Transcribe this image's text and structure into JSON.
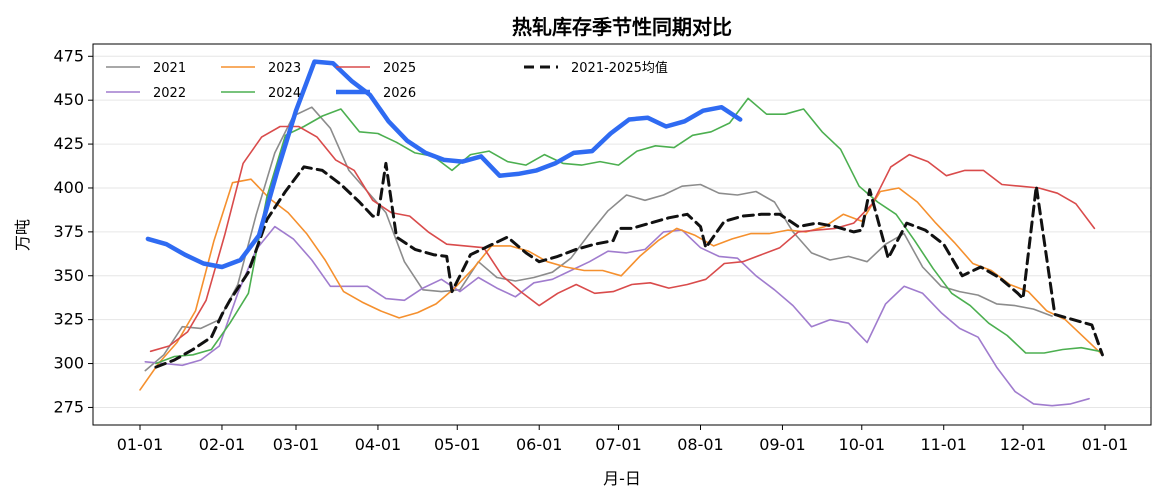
{
  "chart_data": {
    "type": "line",
    "title": "热轧库存季节性同期对比",
    "xlabel": "月-日",
    "ylabel": "万吨",
    "ylim": [
      265,
      482
    ],
    "yticks": [
      275,
      300,
      325,
      350,
      375,
      400,
      425,
      450,
      475
    ],
    "x_tick_labels": [
      "01-01",
      "02-01",
      "03-01",
      "04-01",
      "05-01",
      "06-01",
      "07-01",
      "08-01",
      "09-01",
      "10-01",
      "11-01",
      "12-01",
      "01-01"
    ],
    "x_tick_days": [
      0,
      31,
      59,
      90,
      120,
      151,
      181,
      212,
      243,
      273,
      304,
      334,
      365
    ],
    "grid": "horizontal",
    "legend_position": "top-left",
    "series": [
      {
        "name": "2021",
        "color": "#8c8c8c",
        "width": 1.6,
        "dash": "",
        "x": [
          2,
          9,
          16,
          23,
          30,
          37,
          44,
          51,
          58,
          65,
          72,
          79,
          86,
          93,
          100,
          107,
          114,
          121,
          128,
          135,
          142,
          149,
          156,
          163,
          170,
          177,
          184,
          191,
          198,
          205,
          212,
          219,
          226,
          233,
          240,
          247,
          254,
          261,
          268,
          275,
          282,
          289,
          296,
          303,
          310,
          317,
          324,
          331,
          338,
          345
        ],
        "y": [
          296,
          305,
          321,
          320,
          325,
          345,
          385,
          420,
          441,
          446,
          434,
          410,
          398,
          386,
          358,
          342,
          341,
          342,
          358,
          349,
          347,
          349,
          352,
          360,
          374,
          387,
          396,
          393,
          396,
          401,
          402,
          397,
          396,
          398,
          392,
          375,
          363,
          359,
          361,
          358,
          368,
          374,
          355,
          344,
          341,
          339,
          334,
          333,
          331,
          327
        ]
      },
      {
        "name": "2022",
        "color": "#a07cce",
        "width": 1.6,
        "dash": "",
        "x": [
          2,
          9,
          16,
          23,
          30,
          37,
          44,
          51,
          58,
          65,
          72,
          79,
          86,
          93,
          100,
          107,
          114,
          121,
          128,
          135,
          142,
          149,
          156,
          163,
          170,
          177,
          184,
          191,
          198,
          205,
          212,
          219,
          226,
          233,
          240,
          247,
          254,
          261,
          268,
          275,
          282,
          289,
          296,
          303,
          310,
          317,
          324,
          331,
          338,
          345,
          352,
          359
        ],
        "y": [
          301,
          300,
          299,
          302,
          310,
          340,
          365,
          378,
          371,
          359,
          344,
          344,
          344,
          337,
          336,
          343,
          348,
          341,
          349,
          343,
          338,
          346,
          348,
          353,
          358,
          364,
          363,
          365,
          375,
          376,
          366,
          361,
          360,
          350,
          342,
          333,
          321,
          325,
          323,
          312,
          334,
          344,
          340,
          329,
          320,
          315,
          298,
          284,
          277,
          276,
          277,
          280
        ]
      },
      {
        "name": "2023",
        "color": "#f5902e",
        "width": 1.6,
        "dash": "",
        "x": [
          0,
          7,
          14,
          21,
          28,
          35,
          42,
          49,
          56,
          63,
          70,
          77,
          84,
          91,
          98,
          105,
          112,
          119,
          126,
          133,
          140,
          147,
          154,
          161,
          168,
          175,
          182,
          189,
          196,
          203,
          210,
          217,
          224,
          231,
          238,
          245,
          252,
          259,
          266,
          273,
          280,
          287,
          294,
          301,
          308,
          315,
          322,
          329,
          336,
          343,
          350,
          357,
          364
        ],
        "y": [
          285,
          300,
          312,
          330,
          370,
          403,
          405,
          394,
          386,
          374,
          359,
          341,
          335,
          330,
          326,
          329,
          334,
          343,
          354,
          367,
          367,
          364,
          358,
          355,
          353,
          353,
          350,
          361,
          370,
          377,
          373,
          367,
          371,
          374,
          374,
          376,
          375,
          378,
          385,
          381,
          398,
          400,
          392,
          380,
          369,
          357,
          353,
          345,
          341,
          330,
          325,
          315,
          305
        ]
      },
      {
        "name": "2024",
        "color": "#4caf50",
        "width": 1.6,
        "dash": "",
        "x": [
          6,
          13,
          20,
          27,
          34,
          41,
          48,
          55,
          62,
          69,
          76,
          83,
          90,
          97,
          104,
          111,
          118,
          125,
          132,
          139,
          146,
          153,
          160,
          167,
          174,
          181,
          188,
          195,
          202,
          209,
          216,
          223,
          230,
          237,
          244,
          251,
          258,
          265,
          272,
          279,
          286,
          293,
          300,
          307,
          314,
          321,
          328,
          335,
          342,
          349,
          356,
          363
        ],
        "y": [
          300,
          304,
          305,
          308,
          323,
          340,
          395,
          430,
          435,
          441,
          445,
          432,
          431,
          426,
          420,
          418,
          410,
          419,
          421,
          415,
          413,
          419,
          414,
          413,
          415,
          413,
          421,
          424,
          423,
          430,
          432,
          437,
          451,
          442,
          442,
          445,
          432,
          422,
          401,
          392,
          385,
          370,
          354,
          340,
          333,
          323,
          316,
          306,
          306,
          308,
          309,
          307
        ]
      },
      {
        "name": "2025",
        "color": "#d94b4b",
        "width": 1.6,
        "dash": "",
        "x": [
          4,
          11,
          18,
          25,
          32,
          39,
          46,
          53,
          60,
          67,
          74,
          81,
          88,
          95,
          102,
          109,
          116,
          123,
          130,
          137,
          144,
          151,
          158,
          165,
          172,
          179,
          186,
          193,
          200,
          207,
          214,
          221,
          228,
          235,
          242,
          249,
          256,
          263,
          270,
          277,
          284,
          291,
          298,
          305,
          312,
          319,
          326,
          333,
          340,
          347,
          354,
          361
        ],
        "y": [
          307,
          310,
          318,
          336,
          373,
          414,
          429,
          435,
          435,
          429,
          416,
          410,
          393,
          386,
          384,
          375,
          368,
          367,
          366,
          350,
          341,
          333,
          340,
          345,
          340,
          341,
          345,
          346,
          343,
          345,
          348,
          357,
          358,
          362,
          366,
          375,
          376,
          377,
          380,
          391,
          412,
          419,
          415,
          407,
          410,
          410,
          402,
          401,
          400,
          397,
          391,
          377
        ]
      },
      {
        "name": "2026",
        "color": "#2f6bf2",
        "width": 4.5,
        "dash": "",
        "x": [
          3,
          10,
          17,
          24,
          31,
          38,
          45,
          52,
          59,
          66,
          73,
          80,
          87,
          94,
          101,
          108,
          115,
          122,
          129,
          136,
          143,
          150,
          157,
          164,
          171,
          178,
          185,
          192,
          199,
          206,
          213,
          220,
          227
        ],
        "y": [
          371,
          368,
          362,
          357,
          355,
          359,
          373,
          410,
          444,
          472,
          471,
          461,
          453,
          438,
          427,
          420,
          416,
          415,
          418,
          407,
          408,
          410,
          414,
          420,
          421,
          431,
          439,
          440,
          435,
          438,
          444,
          446,
          439
        ]
      },
      {
        "name": "2021-2025均值",
        "color": "#111111",
        "width": 3,
        "dash": "10,6",
        "x": [
          6,
          13,
          20,
          27,
          31,
          34,
          41,
          48,
          55,
          62,
          69,
          76,
          83,
          88,
          90,
          93,
          97,
          104,
          111,
          116,
          118,
          125,
          132,
          139,
          146,
          151,
          158,
          165,
          172,
          179,
          181,
          186,
          193,
          200,
          207,
          212,
          214,
          221,
          228,
          235,
          242,
          249,
          256,
          263,
          270,
          273,
          276,
          283,
          290,
          297,
          304,
          311,
          318,
          325,
          332,
          334,
          339,
          346,
          353,
          360,
          364
        ],
        "y": [
          298,
          302,
          308,
          315,
          328,
          336,
          352,
          382,
          398,
          412,
          410,
          402,
          392,
          384,
          384,
          414,
          372,
          365,
          362,
          361,
          341,
          362,
          367,
          372,
          363,
          358,
          361,
          365,
          368,
          370,
          377,
          377,
          380,
          383,
          385,
          378,
          366,
          381,
          384,
          385,
          385,
          378,
          380,
          378,
          375,
          376,
          399,
          360,
          380,
          376,
          368,
          350,
          355,
          349,
          340,
          337,
          401,
          328,
          325,
          322,
          305
        ]
      }
    ]
  }
}
